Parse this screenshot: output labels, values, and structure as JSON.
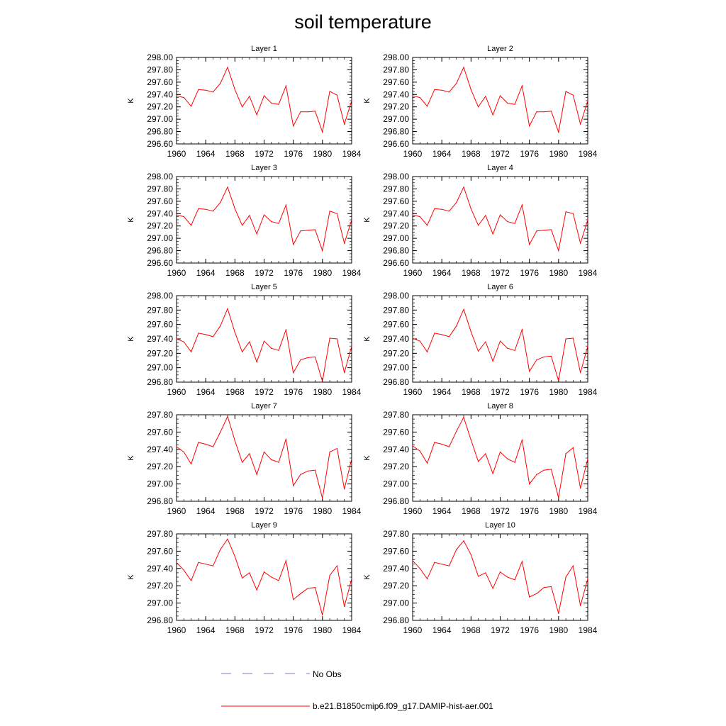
{
  "title": "soil temperature",
  "colors": {
    "model_line": "#ff0000",
    "obs_line": "#7a7acc",
    "axis": "#000000"
  },
  "legend": {
    "obs_label": "No Obs",
    "model_label": "b.e21.B1850cmip6.f09_g17.DAMIP-hist-aer.001"
  },
  "chart_data": [
    {
      "type": "line",
      "title": "Layer 1",
      "ylabel": "K",
      "xlim": [
        1960,
        1984
      ],
      "ylim": [
        296.6,
        298.0
      ],
      "x_ticks": [
        1960,
        1964,
        1968,
        1972,
        1976,
        1980,
        1984
      ],
      "y_ticks": [
        "296.60",
        "296.80",
        "297.00",
        "297.20",
        "297.40",
        "297.60",
        "297.80",
        "298.00"
      ],
      "grid": false,
      "series": [
        {
          "x": [
            1960,
            1961,
            1962,
            1963,
            1964,
            1965,
            1966,
            1967,
            1968,
            1969,
            1970,
            1971,
            1972,
            1973,
            1974,
            1975,
            1976,
            1977,
            1978,
            1979,
            1980,
            1981,
            1982,
            1983,
            1984
          ],
          "values": [
            297.38,
            297.35,
            297.21,
            297.48,
            297.47,
            297.44,
            297.58,
            297.84,
            297.48,
            297.2,
            297.37,
            297.07,
            297.38,
            297.26,
            297.24,
            297.54,
            296.89,
            297.12,
            297.12,
            297.13,
            296.79,
            297.45,
            297.39,
            296.92,
            297.3
          ]
        }
      ]
    },
    {
      "type": "line",
      "title": "Layer 2",
      "ylabel": "K",
      "xlim": [
        1960,
        1984
      ],
      "ylim": [
        296.6,
        298.0
      ],
      "x_ticks": [
        1960,
        1964,
        1968,
        1972,
        1976,
        1980,
        1984
      ],
      "y_ticks": [
        "296.60",
        "296.80",
        "297.00",
        "297.20",
        "297.40",
        "297.60",
        "297.80",
        "298.00"
      ],
      "grid": false,
      "series": [
        {
          "x": [
            1960,
            1961,
            1962,
            1963,
            1964,
            1965,
            1966,
            1967,
            1968,
            1969,
            1970,
            1971,
            1972,
            1973,
            1974,
            1975,
            1976,
            1977,
            1978,
            1979,
            1980,
            1981,
            1982,
            1983,
            1984
          ],
          "values": [
            297.38,
            297.35,
            297.21,
            297.48,
            297.47,
            297.44,
            297.58,
            297.84,
            297.48,
            297.2,
            297.37,
            297.07,
            297.38,
            297.26,
            297.24,
            297.54,
            296.89,
            297.12,
            297.12,
            297.13,
            296.79,
            297.45,
            297.39,
            296.92,
            297.3
          ]
        }
      ]
    },
    {
      "type": "line",
      "title": "Layer 3",
      "ylabel": "K",
      "xlim": [
        1960,
        1984
      ],
      "ylim": [
        296.6,
        298.0
      ],
      "x_ticks": [
        1960,
        1964,
        1968,
        1972,
        1976,
        1980,
        1984
      ],
      "y_ticks": [
        "296.60",
        "296.80",
        "297.00",
        "297.20",
        "297.40",
        "297.60",
        "297.80",
        "298.00"
      ],
      "grid": false,
      "series": [
        {
          "x": [
            1960,
            1961,
            1962,
            1963,
            1964,
            1965,
            1966,
            1967,
            1968,
            1969,
            1970,
            1971,
            1972,
            1973,
            1974,
            1975,
            1976,
            1977,
            1978,
            1979,
            1980,
            1981,
            1982,
            1983,
            1984
          ],
          "values": [
            297.38,
            297.35,
            297.21,
            297.48,
            297.47,
            297.44,
            297.58,
            297.83,
            297.48,
            297.21,
            297.37,
            297.07,
            297.38,
            297.27,
            297.24,
            297.54,
            296.9,
            297.12,
            297.13,
            297.14,
            296.8,
            297.44,
            297.4,
            296.92,
            297.3
          ]
        }
      ]
    },
    {
      "type": "line",
      "title": "Layer 4",
      "ylabel": "K",
      "xlim": [
        1960,
        1984
      ],
      "ylim": [
        296.6,
        298.0
      ],
      "x_ticks": [
        1960,
        1964,
        1968,
        1972,
        1976,
        1980,
        1984
      ],
      "y_ticks": [
        "296.60",
        "296.80",
        "297.00",
        "297.20",
        "297.40",
        "297.60",
        "297.80",
        "298.00"
      ],
      "grid": false,
      "series": [
        {
          "x": [
            1960,
            1961,
            1962,
            1963,
            1964,
            1965,
            1966,
            1967,
            1968,
            1969,
            1970,
            1971,
            1972,
            1973,
            1974,
            1975,
            1976,
            1977,
            1978,
            1979,
            1980,
            1981,
            1982,
            1983,
            1984
          ],
          "values": [
            297.38,
            297.35,
            297.21,
            297.48,
            297.47,
            297.44,
            297.58,
            297.83,
            297.48,
            297.21,
            297.37,
            297.07,
            297.38,
            297.27,
            297.24,
            297.54,
            296.9,
            297.12,
            297.13,
            297.14,
            296.8,
            297.43,
            297.4,
            296.92,
            297.3
          ]
        }
      ]
    },
    {
      "type": "line",
      "title": "Layer 5",
      "ylabel": "K",
      "xlim": [
        1960,
        1984
      ],
      "ylim": [
        296.8,
        298.0
      ],
      "x_ticks": [
        1960,
        1964,
        1968,
        1972,
        1976,
        1980,
        1984
      ],
      "y_ticks": [
        "296.80",
        "297.00",
        "297.20",
        "297.40",
        "297.60",
        "297.80",
        "298.00"
      ],
      "grid": false,
      "series": [
        {
          "x": [
            1960,
            1961,
            1962,
            1963,
            1964,
            1965,
            1966,
            1967,
            1968,
            1969,
            1970,
            1971,
            1972,
            1973,
            1974,
            1975,
            1976,
            1977,
            1978,
            1979,
            1980,
            1981,
            1982,
            1983,
            1984
          ],
          "values": [
            297.4,
            297.36,
            297.22,
            297.48,
            297.46,
            297.43,
            297.58,
            297.82,
            297.49,
            297.22,
            297.36,
            297.08,
            297.37,
            297.27,
            297.24,
            297.53,
            296.93,
            297.11,
            297.14,
            297.15,
            296.81,
            297.41,
            297.4,
            296.93,
            297.3
          ]
        }
      ]
    },
    {
      "type": "line",
      "title": "Layer 6",
      "ylabel": "K",
      "xlim": [
        1960,
        1984
      ],
      "ylim": [
        296.8,
        298.0
      ],
      "x_ticks": [
        1960,
        1964,
        1968,
        1972,
        1976,
        1980,
        1984
      ],
      "y_ticks": [
        "296.80",
        "297.00",
        "297.20",
        "297.40",
        "297.60",
        "297.80",
        "298.00"
      ],
      "grid": false,
      "series": [
        {
          "x": [
            1960,
            1961,
            1962,
            1963,
            1964,
            1965,
            1966,
            1967,
            1968,
            1969,
            1970,
            1971,
            1972,
            1973,
            1974,
            1975,
            1976,
            1977,
            1978,
            1979,
            1980,
            1981,
            1982,
            1983,
            1984
          ],
          "values": [
            297.41,
            297.37,
            297.22,
            297.48,
            297.46,
            297.43,
            297.58,
            297.81,
            297.5,
            297.23,
            297.36,
            297.09,
            297.37,
            297.27,
            297.24,
            297.53,
            296.95,
            297.11,
            297.15,
            297.16,
            296.82,
            297.4,
            297.41,
            296.93,
            297.3
          ]
        }
      ]
    },
    {
      "type": "line",
      "title": "Layer 7",
      "ylabel": "K",
      "xlim": [
        1960,
        1984
      ],
      "ylim": [
        296.8,
        297.8
      ],
      "x_ticks": [
        1960,
        1964,
        1968,
        1972,
        1976,
        1980,
        1984
      ],
      "y_ticks": [
        "296.80",
        "297.00",
        "297.20",
        "297.40",
        "297.60",
        "297.80"
      ],
      "grid": false,
      "series": [
        {
          "x": [
            1960,
            1961,
            1962,
            1963,
            1964,
            1965,
            1966,
            1967,
            1968,
            1969,
            1970,
            1971,
            1972,
            1973,
            1974,
            1975,
            1976,
            1977,
            1978,
            1979,
            1980,
            1981,
            1982,
            1983,
            1984
          ],
          "values": [
            297.43,
            297.37,
            297.23,
            297.48,
            297.46,
            297.43,
            297.6,
            297.78,
            297.5,
            297.25,
            297.35,
            297.11,
            297.37,
            297.28,
            297.25,
            297.52,
            296.98,
            297.11,
            297.15,
            297.16,
            296.83,
            297.37,
            297.41,
            296.94,
            297.29
          ]
        }
      ]
    },
    {
      "type": "line",
      "title": "Layer 8",
      "ylabel": "K",
      "xlim": [
        1960,
        1984
      ],
      "ylim": [
        296.8,
        297.8
      ],
      "x_ticks": [
        1960,
        1964,
        1968,
        1972,
        1976,
        1980,
        1984
      ],
      "y_ticks": [
        "296.80",
        "297.00",
        "297.20",
        "297.40",
        "297.60",
        "297.80"
      ],
      "grid": false,
      "series": [
        {
          "x": [
            1960,
            1961,
            1962,
            1963,
            1964,
            1965,
            1966,
            1967,
            1968,
            1969,
            1970,
            1971,
            1972,
            1973,
            1974,
            1975,
            1976,
            1977,
            1978,
            1979,
            1980,
            1981,
            1982,
            1983,
            1984
          ],
          "values": [
            297.44,
            297.38,
            297.24,
            297.48,
            297.46,
            297.43,
            297.61,
            297.77,
            297.51,
            297.26,
            297.35,
            297.12,
            297.37,
            297.29,
            297.25,
            297.51,
            297.0,
            297.11,
            297.16,
            297.17,
            296.84,
            297.35,
            297.42,
            296.95,
            297.29
          ]
        }
      ]
    },
    {
      "type": "line",
      "title": "Layer 9",
      "ylabel": "K",
      "xlim": [
        1960,
        1984
      ],
      "ylim": [
        296.8,
        297.8
      ],
      "x_ticks": [
        1960,
        1964,
        1968,
        1972,
        1976,
        1980,
        1984
      ],
      "y_ticks": [
        "296.80",
        "297.00",
        "297.20",
        "297.40",
        "297.60",
        "297.80"
      ],
      "grid": false,
      "series": [
        {
          "x": [
            1960,
            1961,
            1962,
            1963,
            1964,
            1965,
            1966,
            1967,
            1968,
            1969,
            1970,
            1971,
            1972,
            1973,
            1974,
            1975,
            1976,
            1977,
            1978,
            1979,
            1980,
            1981,
            1982,
            1983,
            1984
          ],
          "values": [
            297.47,
            297.38,
            297.26,
            297.47,
            297.45,
            297.43,
            297.62,
            297.74,
            297.54,
            297.29,
            297.35,
            297.15,
            297.36,
            297.3,
            297.26,
            297.49,
            297.04,
            297.11,
            297.17,
            297.18,
            296.86,
            297.32,
            297.43,
            296.96,
            297.28
          ]
        }
      ]
    },
    {
      "type": "line",
      "title": "Layer 10",
      "ylabel": "K",
      "xlim": [
        1960,
        1984
      ],
      "ylim": [
        296.8,
        297.8
      ],
      "x_ticks": [
        1960,
        1964,
        1968,
        1972,
        1976,
        1980,
        1984
      ],
      "y_ticks": [
        "296.80",
        "297.00",
        "297.20",
        "297.40",
        "297.60",
        "297.80"
      ],
      "grid": false,
      "series": [
        {
          "x": [
            1960,
            1961,
            1962,
            1963,
            1964,
            1965,
            1966,
            1967,
            1968,
            1969,
            1970,
            1971,
            1972,
            1973,
            1974,
            1975,
            1976,
            1977,
            1978,
            1979,
            1980,
            1981,
            1982,
            1983,
            1984
          ],
          "values": [
            297.49,
            297.4,
            297.28,
            297.47,
            297.45,
            297.43,
            297.62,
            297.72,
            297.56,
            297.31,
            297.35,
            297.17,
            297.36,
            297.3,
            297.27,
            297.48,
            297.07,
            297.11,
            297.18,
            297.19,
            296.88,
            297.3,
            297.43,
            296.97,
            297.28
          ]
        }
      ]
    }
  ]
}
